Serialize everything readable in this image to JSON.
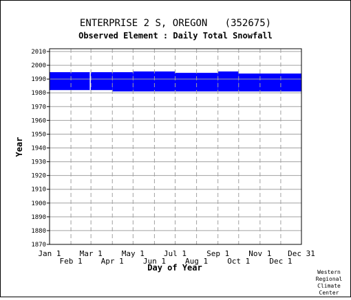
{
  "chart_data": {
    "type": "bar",
    "title": "ENTERPRISE 2 S, OREGON   (352675)",
    "subtitle": "Observed Element : Daily Total Snowfall",
    "xlabel": "Day of Year",
    "ylabel": "Year",
    "ylim": [
      1870,
      2012
    ],
    "yticks": [
      1870,
      1880,
      1890,
      1900,
      1910,
      1920,
      1930,
      1940,
      1950,
      1960,
      1970,
      1980,
      1990,
      2000,
      2010
    ],
    "xlim": [
      1,
      366
    ],
    "xticks_top": [
      {
        "label": "Jan 1",
        "day": 1
      },
      {
        "label": "Mar 1",
        "day": 61
      },
      {
        "label": "May 1",
        "day": 122
      },
      {
        "label": "Jul 1",
        "day": 183
      },
      {
        "label": "Sep 1",
        "day": 245
      },
      {
        "label": "Nov 1",
        "day": 306
      },
      {
        "label": "Dec 31",
        "day": 366
      }
    ],
    "xticks_bottom": [
      {
        "label": "Feb 1",
        "day": 32
      },
      {
        "label": "Apr 1",
        "day": 92
      },
      {
        "label": "Jun 1",
        "day": 153
      },
      {
        "label": "Aug 1",
        "day": 214
      },
      {
        "label": "Oct 1",
        "day": 275
      },
      {
        "label": "Dec 1",
        "day": 336
      }
    ],
    "bar_color": "#0000ff",
    "data_coverage": [
      {
        "start_day": 1,
        "end_day": 60,
        "year_start": 1982,
        "year_end": 1995
      },
      {
        "start_day": 60,
        "end_day": 92,
        "year_start": 1982,
        "year_end": 1995
      },
      {
        "start_day": 92,
        "end_day": 122,
        "year_start": 1981,
        "year_end": 1995
      },
      {
        "start_day": 122,
        "end_day": 183,
        "year_start": 1981,
        "year_end": 1995.5
      },
      {
        "start_day": 183,
        "end_day": 245,
        "year_start": 1981,
        "year_end": 1994.5
      },
      {
        "start_day": 245,
        "end_day": 275,
        "year_start": 1981,
        "year_end": 1995.5
      },
      {
        "start_day": 275,
        "end_day": 366,
        "year_start": 1981,
        "year_end": 1994
      }
    ],
    "gaps": [
      {
        "day": 60,
        "year_start": 1982,
        "year_end": 1995
      }
    ],
    "grid": true
  },
  "credit": {
    "lines": [
      "Western",
      "Regional",
      "Climate",
      "Center"
    ]
  }
}
